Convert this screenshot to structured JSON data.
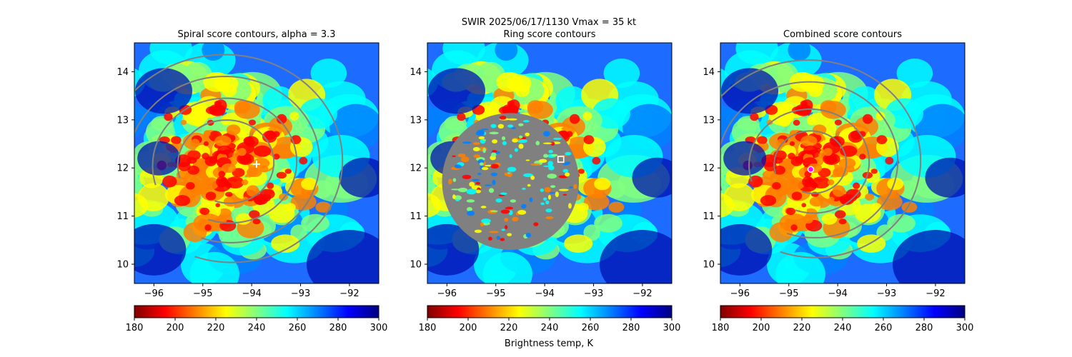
{
  "figure": {
    "suptitle_line1": "SWIR  2025/06/17/1130    Vmax = 35 kt",
    "colorbar_label": "Brightness temp, K"
  },
  "colormap": {
    "name": "jet (reversed)",
    "stops": [
      "#800000",
      "#ff0000",
      "#ff8000",
      "#ffff00",
      "#80ff80",
      "#00ffff",
      "#0080ff",
      "#0000ff",
      "#000080"
    ]
  },
  "contour_color": "#808080",
  "chart_data": [
    {
      "type": "heatmap",
      "title": "Spiral score contours, alpha =  3.3",
      "xlim": [
        -96.4,
        -91.4
      ],
      "ylim": [
        9.6,
        14.6
      ],
      "xticks": [
        -96,
        -95,
        -94,
        -93,
        -92
      ],
      "xtick_labels": [
        "−96",
        "−95",
        "−94",
        "−93",
        "−92"
      ],
      "yticks": [
        10,
        11,
        12,
        13,
        14
      ],
      "ytick_labels": [
        "10",
        "11",
        "12",
        "13",
        "14"
      ],
      "colorbar": {
        "min": 180,
        "max": 300,
        "ticks": [
          180,
          200,
          220,
          240,
          260,
          280,
          300
        ],
        "tick_labels": [
          "180",
          "200",
          "220",
          "240",
          "260",
          "280",
          "300"
        ]
      },
      "overlay": "spiral-contours",
      "marker": {
        "kind": "plus",
        "lon": -93.9,
        "lat": 12.08,
        "color": "#e0ffff"
      }
    },
    {
      "type": "heatmap",
      "title": "Ring score contours",
      "xlim": [
        -96.4,
        -91.4
      ],
      "ylim": [
        9.6,
        14.6
      ],
      "xticks": [
        -96,
        -95,
        -94,
        -93,
        -92
      ],
      "xtick_labels": [
        "−96",
        "−95",
        "−94",
        "−93",
        "−92"
      ],
      "yticks": [
        10,
        11,
        12,
        13,
        14
      ],
      "ytick_labels": [
        "10",
        "11",
        "12",
        "13",
        "14"
      ],
      "colorbar": {
        "min": 180,
        "max": 300,
        "ticks": [
          180,
          200,
          220,
          240,
          260,
          280,
          300
        ],
        "tick_labels": [
          "180",
          "200",
          "220",
          "240",
          "260",
          "280",
          "300"
        ]
      },
      "overlay": "ring-disk",
      "ring_disk": {
        "center_lon": -94.7,
        "center_lat": 11.72,
        "radius_deg": 1.4
      },
      "marker": {
        "kind": "square",
        "lon": -93.67,
        "lat": 12.18,
        "color": "#ffffff"
      }
    },
    {
      "type": "heatmap",
      "title": "Combined score contours",
      "xlim": [
        -96.4,
        -91.4
      ],
      "ylim": [
        9.6,
        14.6
      ],
      "xticks": [
        -96,
        -95,
        -94,
        -93,
        -92
      ],
      "xtick_labels": [
        "−96",
        "−95",
        "−94",
        "−93",
        "−92"
      ],
      "yticks": [
        10,
        11,
        12,
        13,
        14
      ],
      "ytick_labels": [
        "10",
        "11",
        "12",
        "13",
        "14"
      ],
      "colorbar": {
        "min": 180,
        "max": 300,
        "ticks": [
          180,
          200,
          220,
          240,
          260,
          280,
          300
        ],
        "tick_labels": [
          "180",
          "200",
          "220",
          "240",
          "260",
          "280",
          "300"
        ]
      },
      "overlay": "combined-contours",
      "marker": {
        "kind": "circle",
        "lon": -94.55,
        "lat": 11.97,
        "color": "#ff00ff"
      }
    }
  ]
}
